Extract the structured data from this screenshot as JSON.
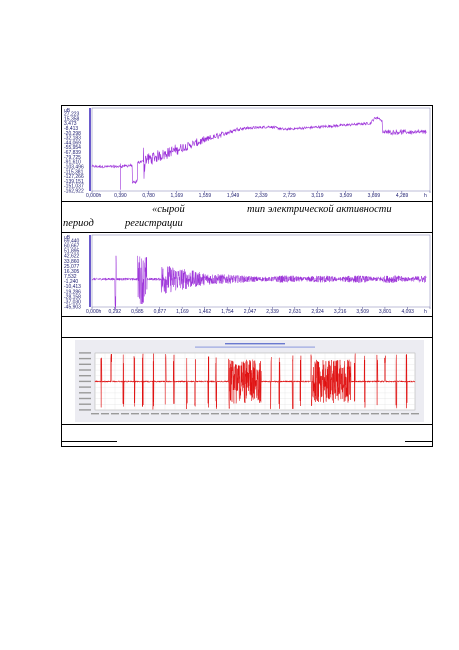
{
  "captions": {
    "line1_a": "«сырой",
    "line1_b": "тип электрической активности",
    "line2_a": "период",
    "line2_b": "регистрации"
  },
  "chart_data": [
    {
      "type": "line",
      "title": "",
      "ylabel": "uB",
      "y_ticks": [
        "27,223",
        "15,358",
        "3,473",
        "-8,413",
        "-20,298",
        "-32,183",
        "-44,069",
        "-55,954",
        "-67,839",
        "-79,725",
        "-91,610",
        "-103,496",
        "-115,381",
        "-127,266",
        "-139,151",
        "-151,037",
        "-162,922"
      ],
      "x_ticks": [
        "0,000h",
        "0,390",
        "0,780",
        "1,169",
        "1,559",
        "1,949",
        "2,339",
        "2,729",
        "3,119",
        "3,509",
        "3,899",
        "4,289",
        "h"
      ],
      "ylim": [
        -162.922,
        27.223
      ],
      "xlim": [
        0,
        4.6
      ],
      "series_color": "#9b30d9"
    },
    {
      "type": "line",
      "title": "",
      "ylabel": "uB",
      "y_ticks": [
        "69,440",
        "60,667",
        "51,895",
        "42,622",
        "33,860",
        "25,077",
        "16,305",
        "7,532",
        "-1,240",
        "-10,413",
        "-19,286",
        "-28,158",
        "-37,030",
        "-45,903"
      ],
      "x_ticks": [
        "0,000h",
        "0,292",
        "0,585",
        "0,877",
        "1,169",
        "1,462",
        "1,754",
        "2,047",
        "2,339",
        "2,631",
        "2,924",
        "3,216",
        "3,509",
        "3,801",
        "4,093",
        "h"
      ],
      "ylim": [
        -45.903,
        69.44
      ],
      "xlim": [
        0,
        4.3
      ],
      "series_color": "#9b30d9"
    },
    {
      "type": "line",
      "title": "",
      "series_color": "#e01010"
    }
  ]
}
